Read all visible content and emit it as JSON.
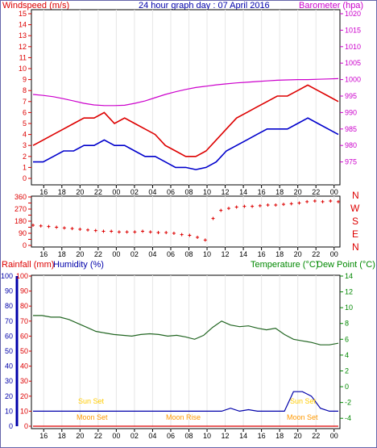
{
  "header": {
    "left_label": "Windspeed (m/s)",
    "title": "24 hour graph day : 07 April 2016",
    "right_label": "Barometer (hpa)"
  },
  "colors": {
    "wind_speed": "#dd0000",
    "wind_avg": "#0000cc",
    "barometer": "#cc00cc",
    "direction": "#dd0000",
    "temperature": "#226622",
    "humidity": "#0000aa",
    "rainfall": "#dd0000",
    "sun": "#ffcc00",
    "moon": "#ff9900",
    "axis_right": "#cc00cc",
    "axis_green": "#008800"
  },
  "x_ticks": [
    "16",
    "18",
    "20",
    "22",
    "00",
    "02",
    "04",
    "06",
    "08",
    "10",
    "12",
    "14",
    "16",
    "18",
    "20",
    "22",
    "00"
  ],
  "compass": [
    "N",
    "W",
    "S",
    "E",
    "N"
  ],
  "bottom_labels": {
    "rainfall": "Rainfall (mm)",
    "humidity": "Humidity (%)",
    "temperature": "Temperature (°C)",
    "dew_point": "Dew Point (°C)"
  },
  "events": {
    "sun_set_1": "Sun Set",
    "sun_set_2": "Sun Set",
    "moon_set_1": "Moon Set",
    "moon_rise": "Moon Rise",
    "moon_set_2": "Moon Set"
  },
  "chart_data": [
    {
      "type": "line",
      "title": "24 hour graph day : 07 April 2016",
      "x_ticks": [
        "16",
        "18",
        "20",
        "22",
        "00",
        "02",
        "04",
        "06",
        "08",
        "10",
        "12",
        "14",
        "16",
        "18",
        "20",
        "22",
        "00"
      ],
      "ylabel": "Windspeed (m/s)",
      "ylim": [
        0,
        15
      ],
      "y2label": "Barometer (hpa)",
      "y2lim": [
        970,
        1020
      ],
      "series": [
        {
          "axis": "left",
          "values": [
            3,
            3.5,
            4,
            4.5,
            5,
            5.5,
            5.5,
            6,
            5,
            5.5,
            5,
            4.5,
            4,
            3,
            2.5,
            2,
            2,
            2.5,
            3.5,
            4.5,
            5.5,
            6,
            6.5,
            7,
            7.5,
            7.5,
            8,
            8.5,
            8,
            7.5,
            7
          ]
        },
        {
          "axis": "left",
          "values": [
            1.5,
            1.5,
            2,
            2.5,
            2.5,
            3,
            3,
            3.5,
            3,
            3,
            2.5,
            2,
            2,
            1.5,
            1,
            1,
            0.8,
            1,
            1.5,
            2.5,
            3,
            3.5,
            4,
            4.5,
            4.5,
            4.5,
            5,
            5.5,
            5,
            4.5,
            4
          ]
        },
        {
          "axis": "right",
          "values": [
            995.5,
            995.2,
            994.8,
            994.2,
            993.5,
            992.8,
            992.3,
            992.1,
            992.1,
            992.2,
            992.8,
            993.5,
            994.5,
            995.5,
            996.3,
            997,
            997.6,
            998,
            998.4,
            998.7,
            999,
            999.2,
            999.4,
            999.6,
            999.8,
            999.9,
            1000,
            1000,
            1000.1,
            1000.2,
            1000.3
          ]
        }
      ]
    },
    {
      "type": "scatter",
      "x_ticks": [
        "16",
        "18",
        "20",
        "22",
        "00",
        "02",
        "04",
        "06",
        "08",
        "10",
        "12",
        "14",
        "16",
        "18",
        "20",
        "22",
        "00"
      ],
      "ylim": [
        0,
        360
      ],
      "y_ticks": [
        0,
        45,
        90,
        135,
        180,
        225,
        270,
        315,
        360
      ],
      "series": [
        {
          "values": [
            150,
            145,
            140,
            135,
            130,
            125,
            120,
            115,
            110,
            105,
            105,
            100,
            100,
            100,
            105,
            100,
            95,
            95,
            90,
            80,
            75,
            60,
            40,
            200,
            260,
            275,
            285,
            290,
            290,
            295,
            300,
            300,
            305,
            310,
            315,
            325,
            330,
            325,
            330,
            325
          ]
        }
      ]
    },
    {
      "type": "line",
      "x_ticks": [
        "16",
        "18",
        "20",
        "22",
        "00",
        "02",
        "04",
        "06",
        "08",
        "10",
        "12",
        "14",
        "16",
        "18",
        "20",
        "22",
        "00"
      ],
      "ylabel": "Rainfall (mm) / Humidity (%)",
      "ylim": [
        0,
        100
      ],
      "y2label": "Temperature (°C) / Dew Point (°C)",
      "y2lim": [
        -5,
        14
      ],
      "series": [
        {
          "axis": "right",
          "values": [
            9,
            9,
            8.8,
            8.8,
            8.5,
            8,
            7.5,
            7,
            6.8,
            6.6,
            6.5,
            6.4,
            6.6,
            6.7,
            6.6,
            6.4,
            6.5,
            6.3,
            6,
            6.5,
            7.5,
            8.3,
            7.8,
            7.6,
            7.7,
            7.4,
            7.2,
            7.4,
            6.6,
            6,
            5.8,
            5.6,
            5.3,
            5.3,
            5.5
          ]
        },
        {
          "axis": "left",
          "values": [
            10,
            10,
            10,
            10,
            10,
            10,
            10,
            10,
            10,
            10,
            10,
            10,
            10,
            10,
            10,
            10,
            10,
            10,
            10,
            10,
            10,
            10,
            12,
            10,
            11,
            10,
            10,
            10,
            10,
            23,
            23,
            20,
            12,
            10,
            10
          ]
        },
        {
          "axis": "left",
          "values": [
            0,
            0,
            0,
            0,
            0,
            0,
            0,
            0,
            0,
            0,
            0,
            0,
            0,
            0,
            0,
            0,
            0,
            0,
            0,
            0,
            0,
            0,
            0,
            0,
            0,
            0,
            0,
            0,
            0,
            0,
            0,
            0,
            0,
            0,
            0
          ]
        }
      ]
    }
  ]
}
